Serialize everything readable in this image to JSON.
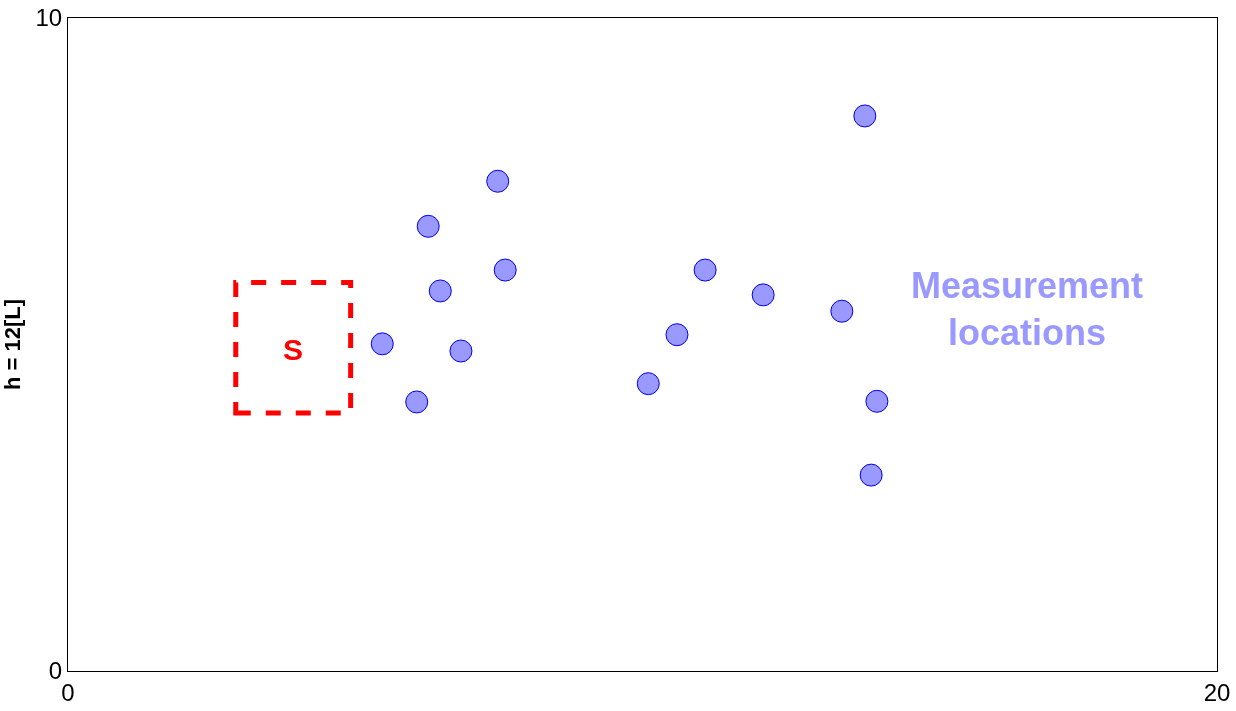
{
  "chart_data": {
    "type": "scatter",
    "ylabel": "h = 12[L]",
    "xlim": [
      0,
      20
    ],
    "ylim": [
      0,
      10
    ],
    "xticks": [
      0,
      20
    ],
    "yticks": [
      0,
      10
    ],
    "legend": false,
    "marker": "circle",
    "annotations": [
      "S"
    ],
    "series": [
      {
        "name": "Measurement locations",
        "color": "#9999ff",
        "x": [
          5.47,
          6.07,
          6.27,
          6.48,
          6.84,
          7.48,
          7.61,
          10.1,
          10.6,
          11.09,
          12.1,
          13.47,
          13.87,
          14.08,
          13.98
        ],
        "values": [
          5.01,
          4.12,
          6.81,
          5.82,
          4.9,
          7.5,
          6.14,
          4.4,
          5.15,
          6.14,
          5.76,
          5.51,
          8.5,
          4.13,
          3.0
        ]
      }
    ]
  }
}
